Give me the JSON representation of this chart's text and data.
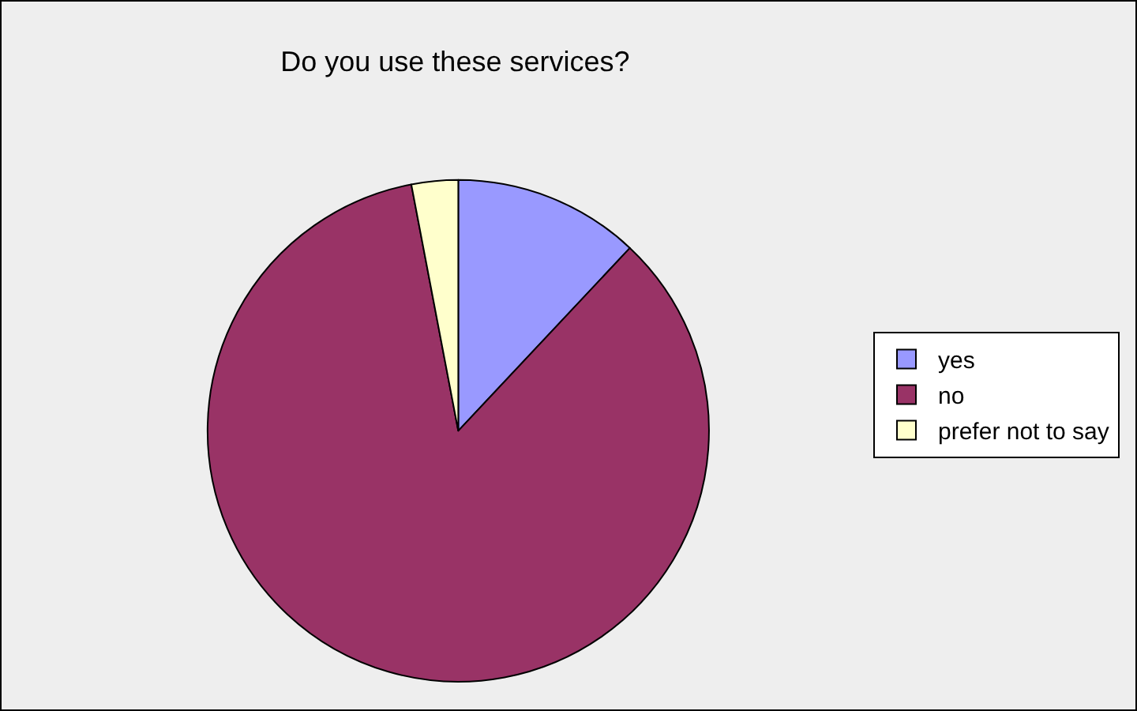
{
  "chart_data": {
    "type": "pie",
    "title": "Do you use these services?",
    "categories": [
      "yes",
      "no",
      "prefer not to say"
    ],
    "values": [
      12,
      85,
      3
    ],
    "colors": [
      "#9999ff",
      "#993366",
      "#ffffcc"
    ],
    "legend": "right"
  }
}
